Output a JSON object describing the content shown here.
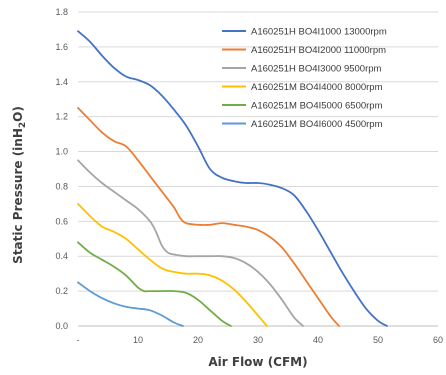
{
  "chart_data": {
    "type": "line",
    "xlabel": "Air Flow (CFM)",
    "ylabel": "Static Pressure (inH2O)",
    "ylabel_parts": {
      "pre": "Static Pressure (inH",
      "sub": "2",
      "post": "O)"
    },
    "xlim": [
      0,
      60
    ],
    "ylim": [
      0,
      1.8
    ],
    "x_ticks": [
      0,
      10,
      20,
      30,
      40,
      50,
      60
    ],
    "x_tick_labels": [
      "-",
      "10",
      "20",
      "30",
      "40",
      "50",
      "60"
    ],
    "y_ticks": [
      0,
      0.2,
      0.4,
      0.6,
      0.8,
      1.0,
      1.2,
      1.4,
      1.6,
      1.8
    ],
    "y_tick_labels": [
      "0.0",
      "0.2",
      "0.4",
      "0.6",
      "0.8",
      "1.0",
      "1.2",
      "1.4",
      "1.6",
      "1.8"
    ],
    "grid": "horizontal",
    "legend_position": "top-right",
    "series": [
      {
        "name": "A160251H BO4I1000 13000rpm",
        "color": "#4472c4",
        "x": [
          0,
          2,
          4,
          6,
          8,
          10,
          12,
          14,
          16,
          18,
          20,
          22,
          24,
          26,
          28,
          30,
          32,
          34,
          36,
          38,
          40,
          42,
          44,
          46,
          48,
          50,
          51.5
        ],
        "y": [
          1.69,
          1.63,
          1.55,
          1.48,
          1.43,
          1.41,
          1.38,
          1.32,
          1.24,
          1.15,
          1.03,
          0.9,
          0.85,
          0.83,
          0.82,
          0.82,
          0.81,
          0.79,
          0.75,
          0.66,
          0.55,
          0.43,
          0.31,
          0.2,
          0.1,
          0.03,
          0.0
        ]
      },
      {
        "name": "A160251H BO4I2000 11000rpm",
        "color": "#ed7d31",
        "x": [
          0,
          2,
          4,
          6,
          8,
          10,
          12,
          14,
          16,
          17,
          18,
          20,
          22,
          24,
          26,
          28,
          30,
          32,
          34,
          36,
          38,
          40,
          42,
          43.5
        ],
        "y": [
          1.25,
          1.18,
          1.11,
          1.06,
          1.03,
          0.95,
          0.86,
          0.77,
          0.68,
          0.62,
          0.59,
          0.58,
          0.58,
          0.59,
          0.58,
          0.57,
          0.55,
          0.51,
          0.45,
          0.36,
          0.26,
          0.16,
          0.06,
          0.0
        ]
      },
      {
        "name": "A160251H BO4I3000 9500rpm",
        "color": "#a5a5a5",
        "x": [
          0,
          2,
          4,
          6,
          8,
          10,
          12,
          13,
          14,
          15,
          16,
          18,
          20,
          22,
          24,
          26,
          28,
          30,
          32,
          34,
          36,
          37.5
        ],
        "y": [
          0.95,
          0.88,
          0.82,
          0.77,
          0.72,
          0.67,
          0.6,
          0.54,
          0.46,
          0.42,
          0.41,
          0.4,
          0.4,
          0.4,
          0.4,
          0.39,
          0.36,
          0.31,
          0.24,
          0.15,
          0.05,
          0.0
        ]
      },
      {
        "name": "A160251M BO4I4000 8000rpm",
        "color": "#ffc000",
        "x": [
          0,
          2,
          4,
          6,
          8,
          10,
          12,
          14,
          16,
          18,
          20,
          22,
          24,
          26,
          28,
          30,
          31.5
        ],
        "y": [
          0.7,
          0.63,
          0.57,
          0.54,
          0.5,
          0.44,
          0.38,
          0.33,
          0.31,
          0.3,
          0.3,
          0.29,
          0.26,
          0.21,
          0.14,
          0.06,
          0.0
        ]
      },
      {
        "name": "A160251M BO4I5000 6500rpm",
        "color": "#70ad47",
        "x": [
          0,
          2,
          4,
          6,
          8,
          10,
          11,
          12,
          14,
          16,
          18,
          20,
          22,
          24,
          25.5
        ],
        "y": [
          0.48,
          0.42,
          0.38,
          0.34,
          0.29,
          0.22,
          0.2,
          0.2,
          0.2,
          0.2,
          0.19,
          0.15,
          0.09,
          0.03,
          0.0
        ]
      },
      {
        "name": "A160251M BO4I6000 4500rpm",
        "color": "#5b9bd5",
        "x": [
          0,
          2,
          4,
          6,
          8,
          10,
          12,
          14,
          16,
          17.5
        ],
        "y": [
          0.25,
          0.2,
          0.16,
          0.13,
          0.11,
          0.1,
          0.09,
          0.06,
          0.02,
          0.0
        ]
      }
    ]
  }
}
